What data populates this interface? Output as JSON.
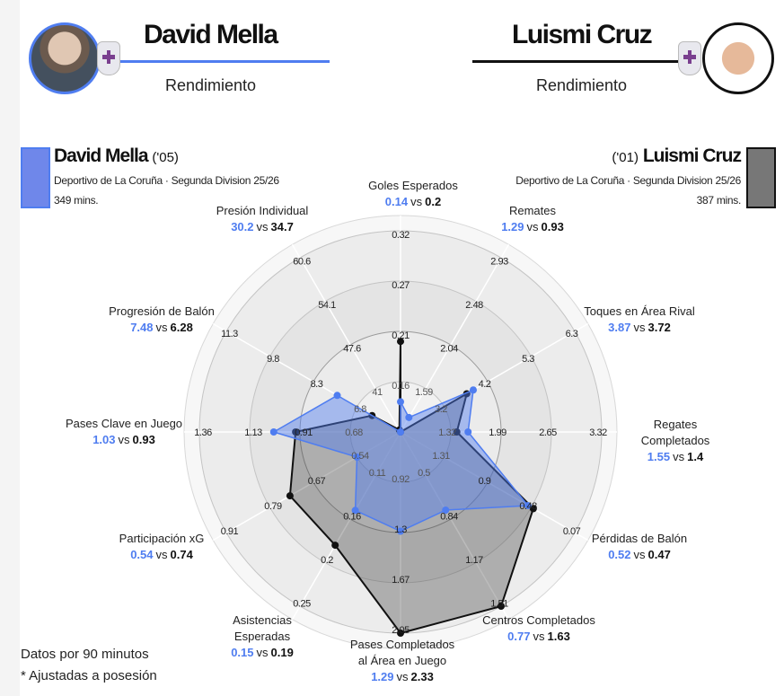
{
  "header": {
    "left": {
      "name": "David Mella",
      "subtitle": "Rendimiento"
    },
    "right": {
      "name": "Luismi Cruz",
      "subtitle": "Rendimiento"
    }
  },
  "players": [
    {
      "name": "David Mella",
      "year": "('05)",
      "team_line": "Deportivo de La Coruña · Segunda Division 25/26",
      "minutes": "349 mins.",
      "color": "#4f7df0"
    },
    {
      "name": "Luismi Cruz",
      "year": "('01)",
      "team_line": "Deportivo de La Coruña · Segunda Division 25/26",
      "minutes": "387 mins.",
      "color": "#111111"
    }
  ],
  "vs_label": "vs",
  "footer": {
    "line1": "Datos por 90 minutos",
    "line2": "* Ajustadas a posesión"
  },
  "chart_data": {
    "type": "radar",
    "series": [
      {
        "name": "David Mella",
        "color": "#4f7df0",
        "values": [
          0.14,
          1.29,
          3.87,
          1.55,
          0.52,
          0.77,
          1.29,
          0.15,
          0.54,
          1.03,
          7.48,
          30.2
        ]
      },
      {
        "name": "Luismi Cruz",
        "color": "#111111",
        "values": [
          0.2,
          0.93,
          3.72,
          1.4,
          0.47,
          1.63,
          2.33,
          0.19,
          0.74,
          0.93,
          6.28,
          34.7
        ]
      }
    ],
    "axes": [
      {
        "label": [
          "Goles Esperados"
        ],
        "ticks": [
          "0.16",
          "0.21",
          "0.27",
          "0.32"
        ]
      },
      {
        "label": [
          "Remates"
        ],
        "ticks": [
          "1.59",
          "2.04",
          "2.48",
          "2.93"
        ]
      },
      {
        "label": [
          "Toques en Área Rival"
        ],
        "ticks": [
          "3.2",
          "4.2",
          "5.3",
          "6.3"
        ]
      },
      {
        "label": [
          "Regates",
          "Completados"
        ],
        "ticks": [
          "1.32",
          "1.99",
          "2.65",
          "3.32"
        ]
      },
      {
        "label": [
          "Pérdidas de Balón"
        ],
        "ticks": [
          "1.31",
          "0.9",
          "0.48",
          "0.07"
        ]
      },
      {
        "label": [
          "Centros Completados"
        ],
        "ticks": [
          "0.5",
          "0.84",
          "1.17",
          "1.51"
        ]
      },
      {
        "label": [
          "Pases Completados",
          "al Área en Juego"
        ],
        "ticks": [
          "0.92",
          "1.3",
          "1.67",
          "2.05"
        ]
      },
      {
        "label": [
          "Asistencias",
          "Esperadas"
        ],
        "ticks": [
          "0.11",
          "0.16",
          "0.2",
          "0.25"
        ]
      },
      {
        "label": [
          "Participación xG"
        ],
        "ticks": [
          "0.54",
          "0.67",
          "0.79",
          "0.91"
        ]
      },
      {
        "label": [
          "Pases Clave en Juego"
        ],
        "ticks": [
          "0.68",
          "0.91",
          "1.13",
          "1.36"
        ]
      },
      {
        "label": [
          "Progresión de Balón"
        ],
        "ticks": [
          "6.8",
          "8.3",
          "9.8",
          "11.3"
        ]
      },
      {
        "label": [
          "Presión Individual"
        ],
        "ticks": [
          "41",
          "47.6",
          "54.1",
          "60.6"
        ]
      }
    ]
  }
}
